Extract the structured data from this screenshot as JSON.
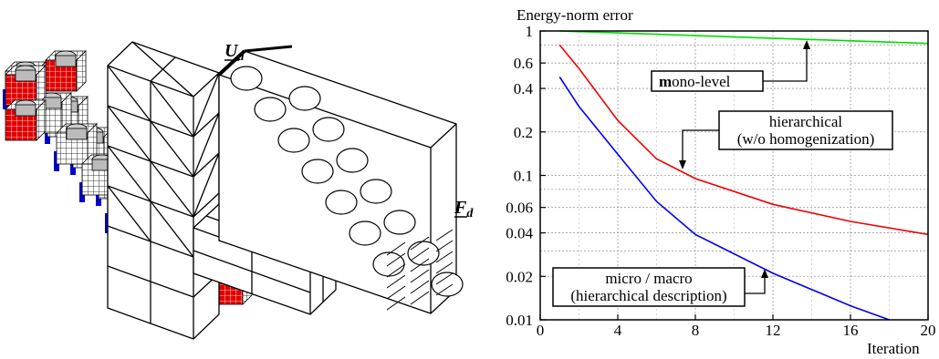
{
  "left_figure": {
    "label_u": "U",
    "label_u_sub": "d",
    "label_f": "F",
    "label_f_sub": "d"
  },
  "chart_data": {
    "type": "line",
    "ylabel": "Energy-norm error",
    "xlabel": "Iteration",
    "xlim": [
      0,
      20
    ],
    "ylim": [
      0.01,
      1
    ],
    "y_scale": "log",
    "grid": true,
    "x_ticks": [
      0,
      4,
      8,
      12,
      16,
      20
    ],
    "x_tick_labels": [
      "0",
      "4",
      "8",
      "12",
      "16",
      "20"
    ],
    "y_ticks": [
      1,
      0.6,
      0.4,
      0.2,
      0.1,
      0.06,
      0.04,
      0.02,
      0.01
    ],
    "y_tick_labels": [
      "1",
      "0.6",
      "0.4",
      "0.2",
      "0.1",
      "0.06",
      "0.04",
      "0.02",
      "0.01"
    ],
    "y_minor_gridlines": [
      0.8,
      0.08,
      0.03
    ],
    "series": [
      {
        "name": "mono-level",
        "color": "#00dd00",
        "x": [
          1,
          20
        ],
        "y": [
          1.0,
          0.82
        ]
      },
      {
        "name": "hierarchical (w/o homogenization)",
        "color": "#ee0000",
        "x": [
          1,
          2,
          4,
          6,
          8,
          12,
          16,
          20
        ],
        "y": [
          0.8,
          0.55,
          0.24,
          0.13,
          0.095,
          0.063,
          0.048,
          0.039
        ]
      },
      {
        "name": "micro / macro (hierarchical description)",
        "color": "#0000ee",
        "x": [
          1,
          2,
          4,
          6,
          8,
          12,
          16,
          18
        ],
        "y": [
          0.48,
          0.3,
          0.14,
          0.066,
          0.039,
          0.021,
          0.0125,
          0.01
        ]
      }
    ],
    "annotations": {
      "mono": {
        "bold_prefix": "m",
        "text": "ono-level"
      },
      "hier_line1": "hierarchical",
      "hier_line2": "(w/o homogenization)",
      "micro_line1": "micro / macro",
      "micro_line2": "(hierarchical description)"
    }
  }
}
